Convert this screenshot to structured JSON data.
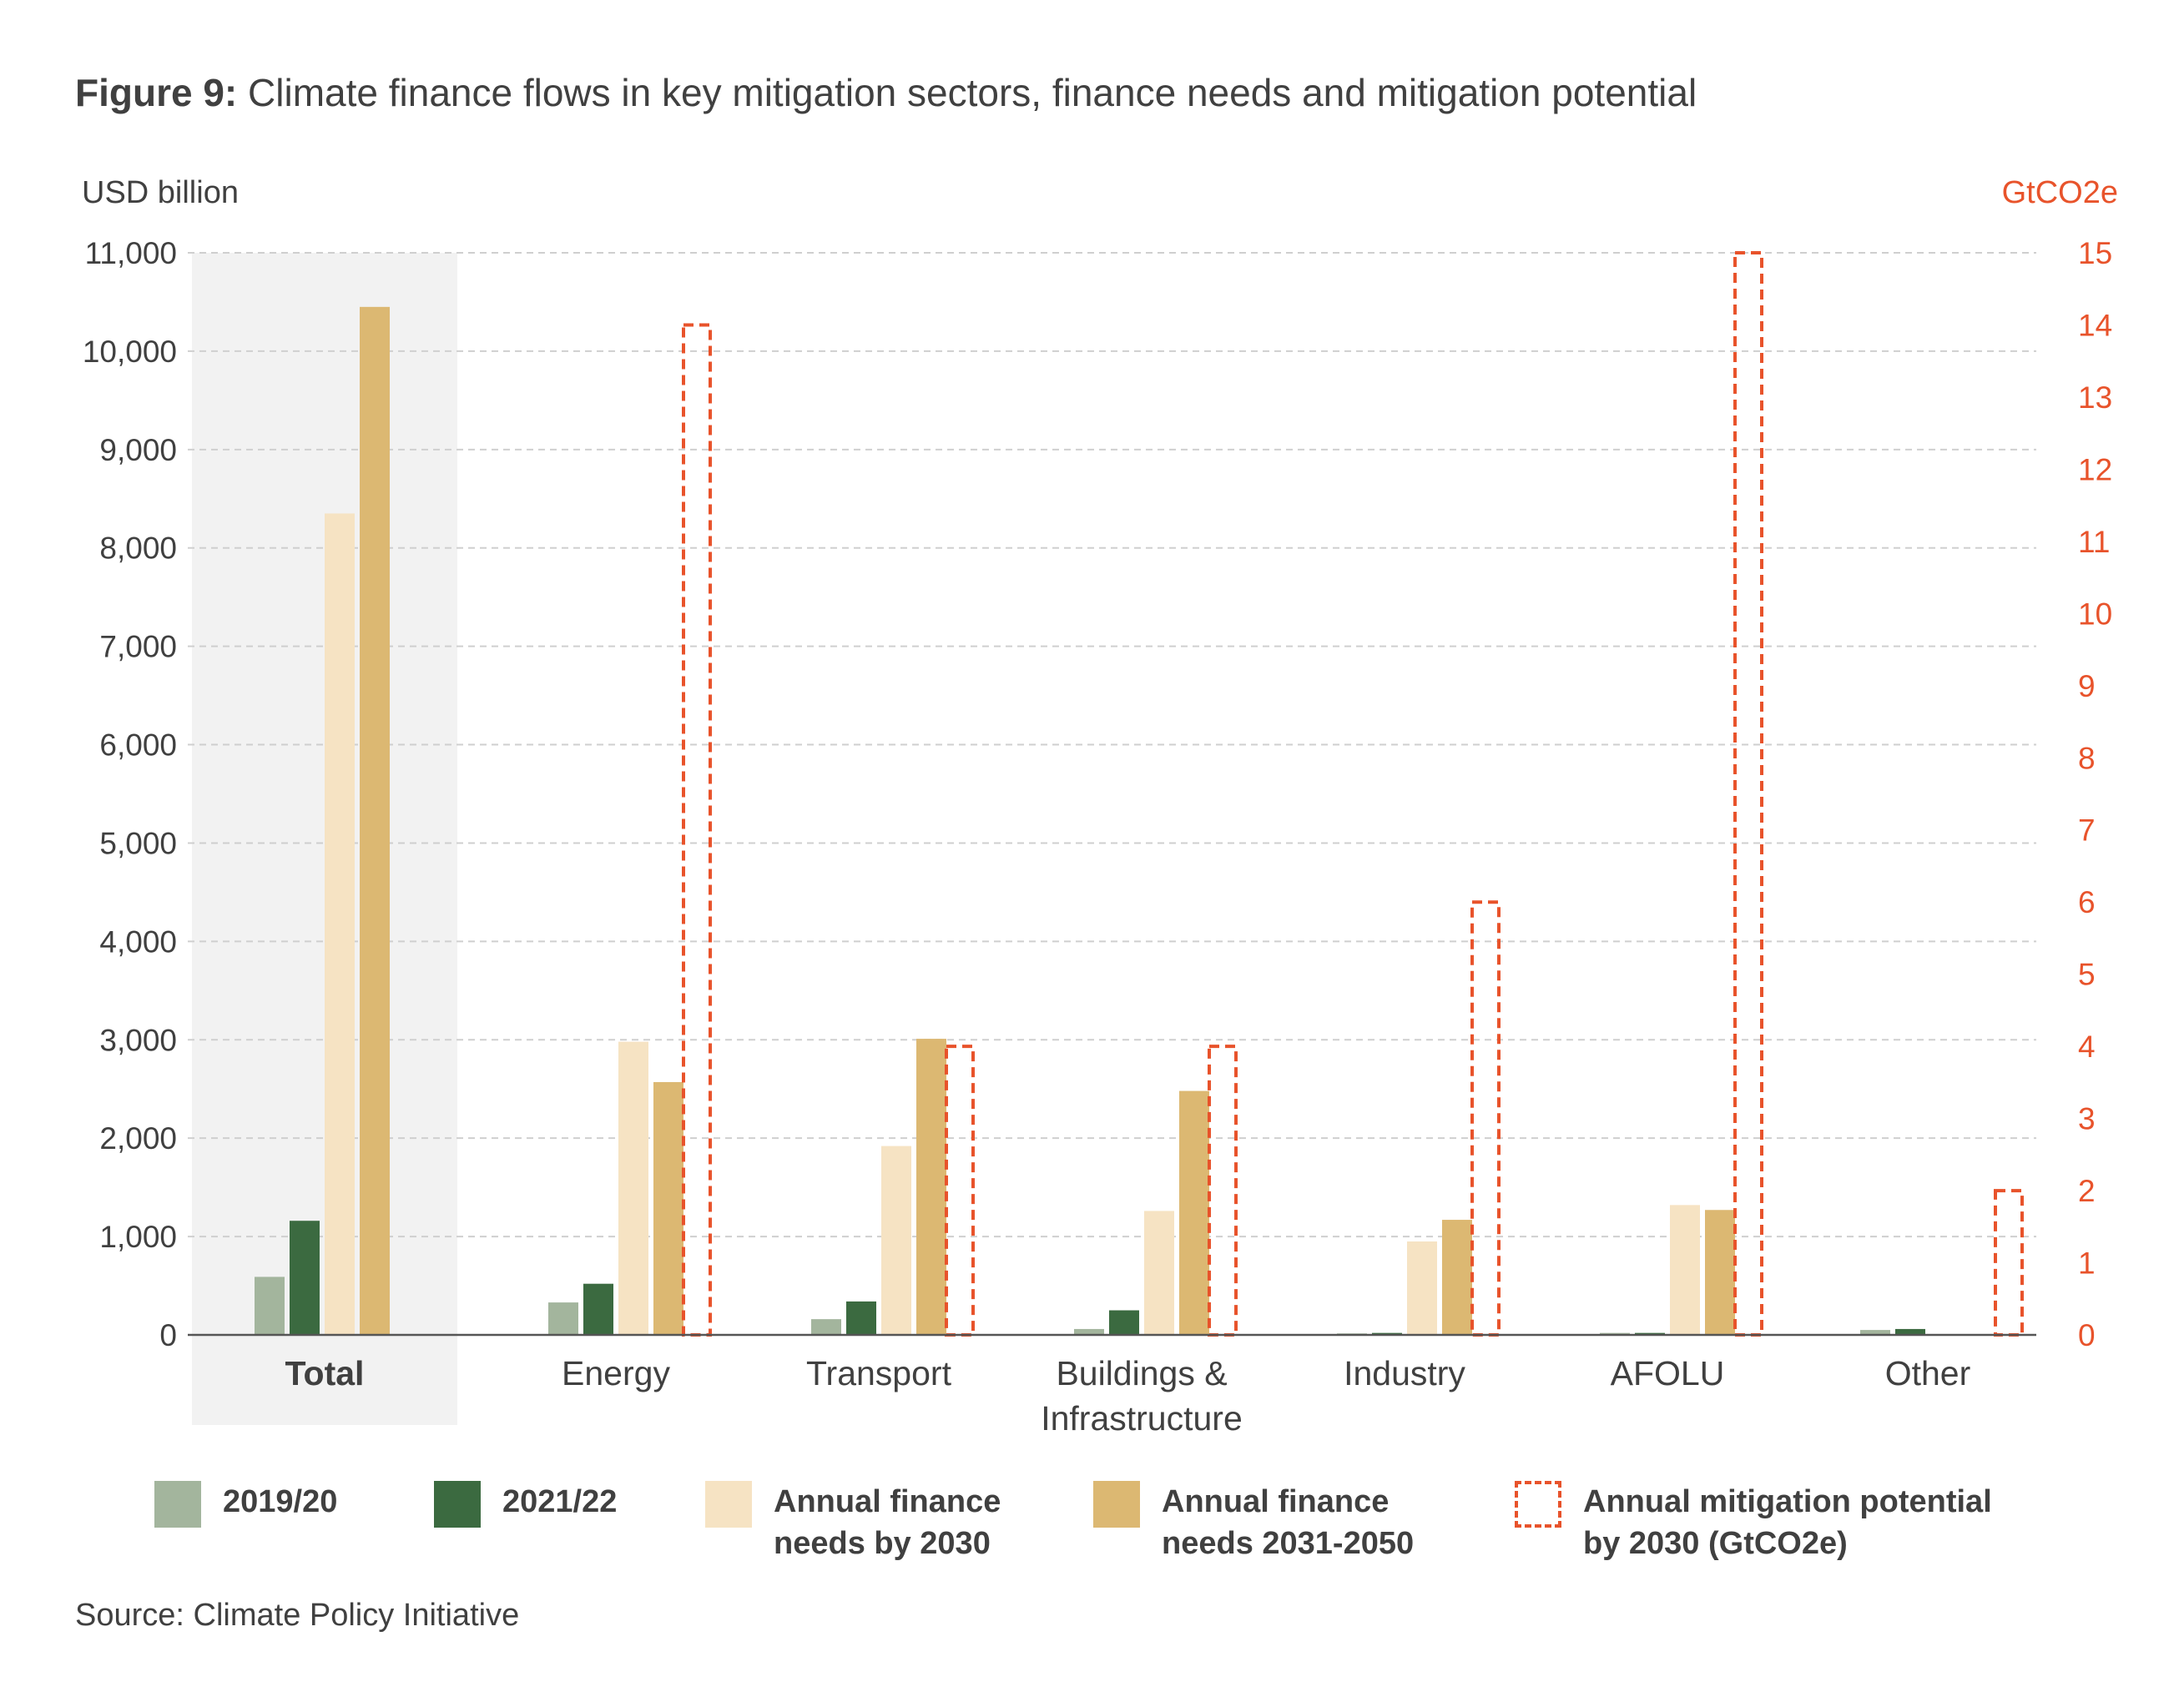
{
  "title": {
    "prefix": "Figure 9:",
    "text": " Climate finance flows in key mitigation sectors, finance needs and mitigation potential"
  },
  "source": "Source: Climate Policy Initiative",
  "colors": {
    "s2019": "#a3b59d",
    "s2021": "#3b6a40",
    "needs2030": "#f6e3c3",
    "needs2050": "#dcb872",
    "mitigation": "#e8532b",
    "highlight_bg": "#f2f2f2",
    "grid": "#cfcfcf"
  },
  "legend": [
    {
      "key": "s2019",
      "label": "2019/20"
    },
    {
      "key": "s2021",
      "label": "2021/22"
    },
    {
      "key": "needs2030",
      "label": "Annual finance\nneeds by 2030"
    },
    {
      "key": "needs2050",
      "label": "Annual finance\nneeds 2031-2050"
    },
    {
      "key": "mitigation",
      "label": "Annual mitigation potential\nby 2030 (GtCO2e)"
    }
  ],
  "chart_data": {
    "type": "bar",
    "categories": [
      "Total",
      "Energy",
      "Transport",
      "Buildings &\nInfrastructure",
      "Industry",
      "AFOLU",
      "Other"
    ],
    "highlighted_category": "Total",
    "y_left_label": "USD billion",
    "y_right_label": "GtCO2e",
    "ylim": [
      0,
      11000
    ],
    "y2lim": [
      0,
      15
    ],
    "y_ticks": [
      "0",
      "1,000",
      "2,000",
      "3,000",
      "4,000",
      "5,000",
      "6,000",
      "7,000",
      "8,000",
      "9,000",
      "10,000",
      "11,000"
    ],
    "y2_ticks": [
      "0",
      "1",
      "2",
      "3",
      "4",
      "5",
      "6",
      "7",
      "8",
      "9",
      "10",
      "11",
      "12",
      "13",
      "14",
      "15"
    ],
    "grid": true,
    "series": [
      {
        "key": "s2019",
        "name": "2019/20",
        "axis": "left",
        "values": [
          590,
          330,
          160,
          60,
          15,
          20,
          50
        ]
      },
      {
        "key": "s2021",
        "name": "2021/22",
        "axis": "left",
        "values": [
          1160,
          520,
          340,
          250,
          20,
          20,
          60
        ]
      },
      {
        "key": "needs2030",
        "name": "Annual finance needs by 2030",
        "axis": "left",
        "values": [
          8350,
          2980,
          1920,
          1260,
          950,
          1320,
          null
        ]
      },
      {
        "key": "needs2050",
        "name": "Annual finance needs 2031-2050",
        "axis": "left",
        "values": [
          10450,
          2570,
          3010,
          2480,
          1170,
          1270,
          null
        ]
      },
      {
        "key": "mitigation",
        "name": "Annual mitigation potential by 2030 (GtCO2e)",
        "axis": "right",
        "values": [
          null,
          14,
          4,
          4,
          6,
          15,
          2
        ]
      }
    ]
  }
}
